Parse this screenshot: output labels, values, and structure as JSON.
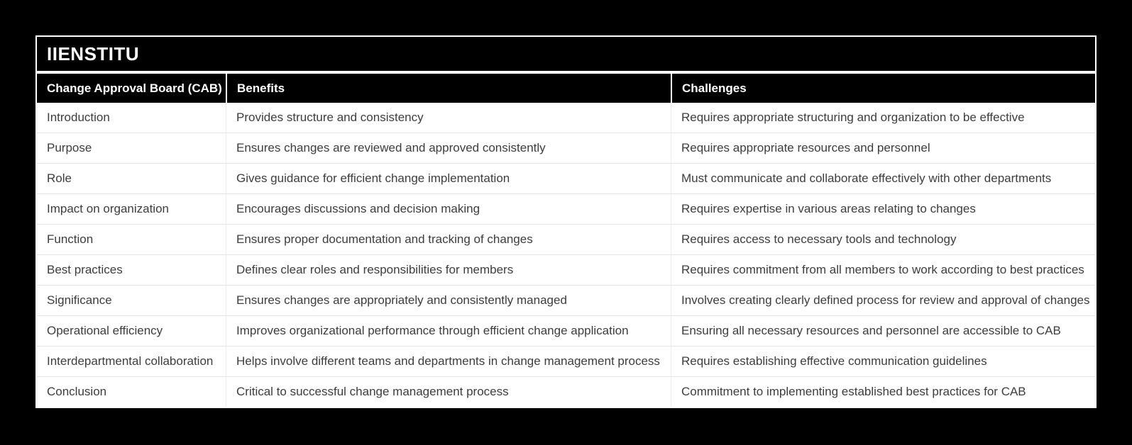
{
  "page": {
    "background_color": "#000000"
  },
  "card": {
    "title": "IIENSTITU",
    "background_color": "#ffffff",
    "title_bar_color": "#000000",
    "title_text_color": "#ffffff"
  },
  "table": {
    "header_background": "#000000",
    "header_text_color": "#ffffff",
    "body_text_color": "#3d3d3d",
    "row_divider_color": "#e4e4e4",
    "headers": [
      "Change Approval Board (CAB)",
      "Benefits",
      "Challenges"
    ],
    "rows": [
      {
        "topic": "Introduction",
        "benefit": "Provides structure and consistency",
        "challenge": "Requires appropriate structuring and organization to be effective"
      },
      {
        "topic": "Purpose",
        "benefit": "Ensures changes are reviewed and approved consistently",
        "challenge": "Requires appropriate resources and personnel"
      },
      {
        "topic": "Role",
        "benefit": "Gives guidance for efficient change implementation",
        "challenge": "Must communicate and collaborate effectively with other departments"
      },
      {
        "topic": "Impact on organization",
        "benefit": "Encourages discussions and decision making",
        "challenge": "Requires expertise in various areas relating to changes"
      },
      {
        "topic": "Function",
        "benefit": "Ensures proper documentation and tracking of changes",
        "challenge": "Requires access to necessary tools and technology"
      },
      {
        "topic": "Best practices",
        "benefit": "Defines clear roles and responsibilities for members",
        "challenge": "Requires commitment from all members to work according to best practices"
      },
      {
        "topic": "Significance",
        "benefit": "Ensures changes are appropriately and consistently managed",
        "challenge": "Involves creating clearly defined process for review and approval of changes"
      },
      {
        "topic": "Operational efficiency",
        "benefit": "Improves organizational performance through efficient change application",
        "challenge": "Ensuring all necessary resources and personnel are accessible to CAB"
      },
      {
        "topic": "Interdepartmental collaboration",
        "benefit": "Helps involve different teams and departments in change management process",
        "challenge": "Requires establishing effective communication guidelines"
      },
      {
        "topic": "Conclusion",
        "benefit": "Critical to successful change management process",
        "challenge": "Commitment to implementing established best practices for CAB"
      }
    ]
  },
  "chart_data": {
    "type": "table",
    "title": "IIENSTITU",
    "columns": [
      "Change Approval Board (CAB)",
      "Benefits",
      "Challenges"
    ],
    "rows": [
      [
        "Introduction",
        "Provides structure and consistency",
        "Requires appropriate structuring and organization to be effective"
      ],
      [
        "Purpose",
        "Ensures changes are reviewed and approved consistently",
        "Requires appropriate resources and personnel"
      ],
      [
        "Role",
        "Gives guidance for efficient change implementation",
        "Must communicate and collaborate effectively with other departments"
      ],
      [
        "Impact on organization",
        "Encourages discussions and decision making",
        "Requires expertise in various areas relating to changes"
      ],
      [
        "Function",
        "Ensures proper documentation and tracking of changes",
        "Requires access to necessary tools and technology"
      ],
      [
        "Best practices",
        "Defines clear roles and responsibilities for members",
        "Requires commitment from all members to work according to best practices"
      ],
      [
        "Significance",
        "Ensures changes are appropriately and consistently managed",
        "Involves creating clearly defined process for review and approval of changes"
      ],
      [
        "Operational efficiency",
        "Improves organizational performance through efficient change application",
        "Ensuring all necessary resources and personnel are accessible to CAB"
      ],
      [
        "Interdepartmental collaboration",
        "Helps involve different teams and departments in change management process",
        "Requires establishing effective communication guidelines"
      ],
      [
        "Conclusion",
        "Critical to successful change management process",
        "Commitment to implementing established best practices for CAB"
      ]
    ]
  }
}
